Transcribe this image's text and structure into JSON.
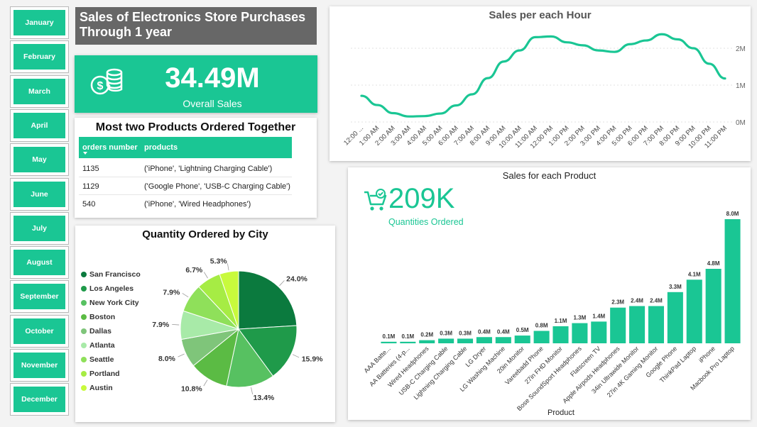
{
  "months": [
    "January",
    "February",
    "March",
    "April",
    "May",
    "June",
    "July",
    "August",
    "September",
    "October",
    "November",
    "December"
  ],
  "title": "Sales of Electronics Store Purchases Through 1 year",
  "kpi": {
    "value": "34.49M",
    "label": "Overall Sales"
  },
  "table": {
    "title": "Most two Products Ordered Together",
    "headers": [
      "orders number",
      "products"
    ],
    "rows": [
      {
        "orders": "1135",
        "products": "('iPhone', 'Lightning Charging Cable')"
      },
      {
        "orders": "1129",
        "products": "('Google Phone', 'USB-C Charging Cable')"
      },
      {
        "orders": "540",
        "products": "('iPhone', 'Wired Headphones')"
      }
    ]
  },
  "quantities": {
    "value": "209K",
    "label": "Quantities Ordered"
  },
  "colors": {
    "accent": "#1ac694",
    "title_bg": "#676767"
  },
  "icons": {
    "kpi": "money-coins-icon",
    "quantities": "shopping-cart-icon"
  },
  "chart_data": [
    {
      "type": "pie",
      "title": "Quantity Ordered by City",
      "categories": [
        "San Francisco",
        "Los Angeles",
        "New York City",
        "Boston",
        "Dallas",
        "Atlanta",
        "Seattle",
        "Portland",
        "Austin"
      ],
      "values": [
        24.0,
        15.9,
        13.4,
        10.8,
        8.0,
        7.9,
        7.9,
        6.7,
        5.3
      ],
      "labels": [
        "24.0%",
        "15.9%",
        "13.4%",
        "10.8%",
        "8.0%",
        "7.9%",
        "7.9%",
        "6.7%",
        "5.3%"
      ],
      "colors": [
        "#0b7a3e",
        "#1f9a4a",
        "#57c161",
        "#5bbb44",
        "#7fc57a",
        "#a8eaa8",
        "#8fe05a",
        "#a6ec44",
        "#c8fa3c"
      ],
      "legend": "left"
    },
    {
      "type": "line",
      "title": "Sales per each Hour",
      "x": [
        "12:00 ...",
        "1:00 AM",
        "2:00 AM",
        "3:00 AM",
        "4:00 AM",
        "5:00 AM",
        "6:00 AM",
        "7:00 AM",
        "8:00 AM",
        "9:00 AM",
        "10:00 AM",
        "11:00 AM",
        "12:00 PM",
        "1:00 PM",
        "2:00 PM",
        "3:00 PM",
        "4:00 PM",
        "5:00 PM",
        "6:00 PM",
        "7:00 PM",
        "8:00 PM",
        "9:00 PM",
        "10:00 PM",
        "11:00 PM"
      ],
      "values": [
        0.71,
        0.46,
        0.24,
        0.15,
        0.16,
        0.23,
        0.45,
        0.75,
        1.19,
        1.64,
        1.94,
        2.3,
        2.32,
        2.16,
        2.08,
        1.94,
        1.9,
        2.11,
        2.21,
        2.38,
        2.24,
        2.0,
        1.58,
        1.18
      ],
      "yticks": [
        "0M",
        "1M",
        "2M"
      ],
      "ylim": [
        0,
        2.5
      ],
      "color": "#1ac694"
    },
    {
      "type": "bar",
      "title": "Sales for each Product",
      "categories": [
        "AAA Batte...",
        "AA Batteries (4-p...",
        "Wired Headphones",
        "USB-C Charging Cable",
        "Lightning Charging Cable",
        "LG Dryer",
        "LG Washing Machine",
        "20in Monitor",
        "Vareebadd Phone",
        "27in FHD Monitor",
        "Bose SoundSport Headphones",
        "Flatscreen TV",
        "Apple Airpods Headphones",
        "34in Ultrawide Monitor",
        "27in 4K Gaming Monitor",
        "Google Phone",
        "ThinkPad Laptop",
        "iPhone",
        "Macbook Pro Laptop"
      ],
      "values": [
        0.1,
        0.1,
        0.2,
        0.3,
        0.3,
        0.4,
        0.4,
        0.5,
        0.8,
        1.1,
        1.3,
        1.4,
        2.3,
        2.4,
        2.4,
        3.3,
        4.1,
        4.8,
        8.0
      ],
      "labels": [
        "0.1M",
        "0.1M",
        "0.2M",
        "0.3M",
        "0.3M",
        "0.4M",
        "0.4M",
        "0.5M",
        "0.8M",
        "1.1M",
        "1.3M",
        "1.4M",
        "2.3M",
        "2.4M",
        "2.4M",
        "3.3M",
        "4.1M",
        "4.8M",
        "8.0M"
      ],
      "xlabel": "Product",
      "ylim": [
        0,
        8.0
      ],
      "color": "#1ac694"
    }
  ]
}
